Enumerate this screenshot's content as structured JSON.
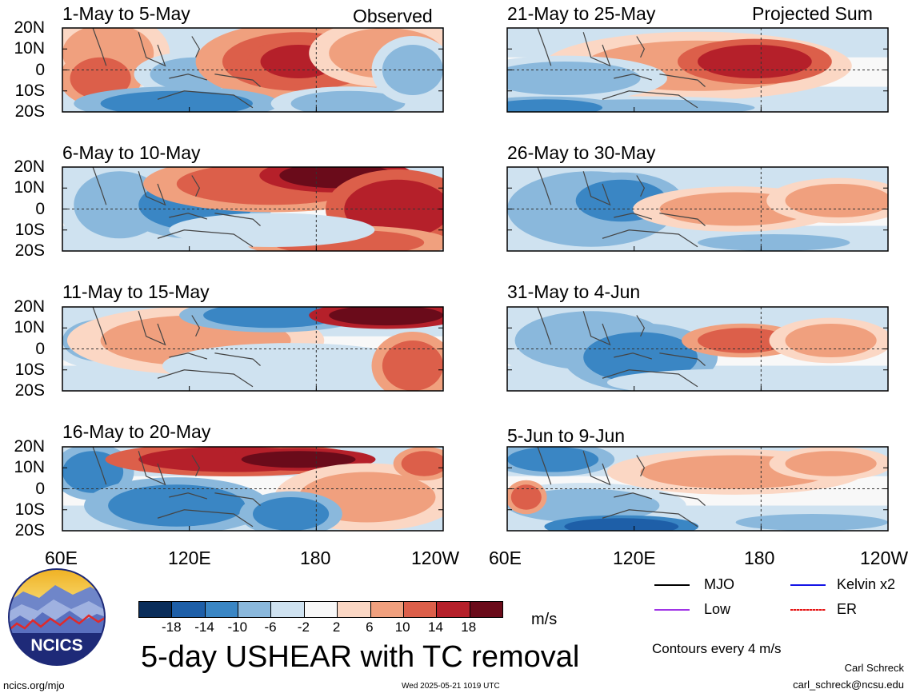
{
  "figure": {
    "title": "5-day USHEAR with TC removal",
    "observed_label": "Observed",
    "projected_label": "Projected Sum",
    "units": "m/s",
    "contour_note": "Contours every 4 m/s",
    "author": "Carl Schreck",
    "email": "carl_schreck@ncsu.edu",
    "site": "ncics.org/mjo",
    "timestamp": "Wed 2025-05-21 1019 UTC",
    "logo_text": "NCICS"
  },
  "lat_labels": [
    "20N",
    "10N",
    "0",
    "10S",
    "20S"
  ],
  "lon_labels": [
    "60E",
    "120E",
    "180",
    "120W"
  ],
  "colorbar": {
    "ticks": [
      "-18",
      "-14",
      "-10",
      "-6",
      "-2",
      "2",
      "6",
      "10",
      "14",
      "18"
    ],
    "colors": [
      "#0a2d5a",
      "#1e5fa8",
      "#3a86c4",
      "#8ab8dc",
      "#cfe2f0",
      "#f8f8f8",
      "#fbd7c4",
      "#f0a07e",
      "#dc5f4a",
      "#b5202a",
      "#6a0b1a"
    ]
  },
  "legend": [
    {
      "label": "MJO",
      "color": "#000000"
    },
    {
      "label": "Kelvin x2",
      "color": "#1414e6"
    },
    {
      "label": "Low",
      "color": "#a035e6"
    },
    {
      "label": "ER",
      "color": "#e61414"
    }
  ],
  "panels": {
    "left": [
      {
        "title": "1-May to 5-May"
      },
      {
        "title": "6-May to 10-May"
      },
      {
        "title": "11-May to 15-May"
      },
      {
        "title": "16-May to 20-May"
      }
    ],
    "right": [
      {
        "title": "21-May to 25-May"
      },
      {
        "title": "26-May to 30-May"
      },
      {
        "title": "31-May to 4-Jun"
      },
      {
        "title": "5-Jun to 9-Jun"
      }
    ]
  }
}
